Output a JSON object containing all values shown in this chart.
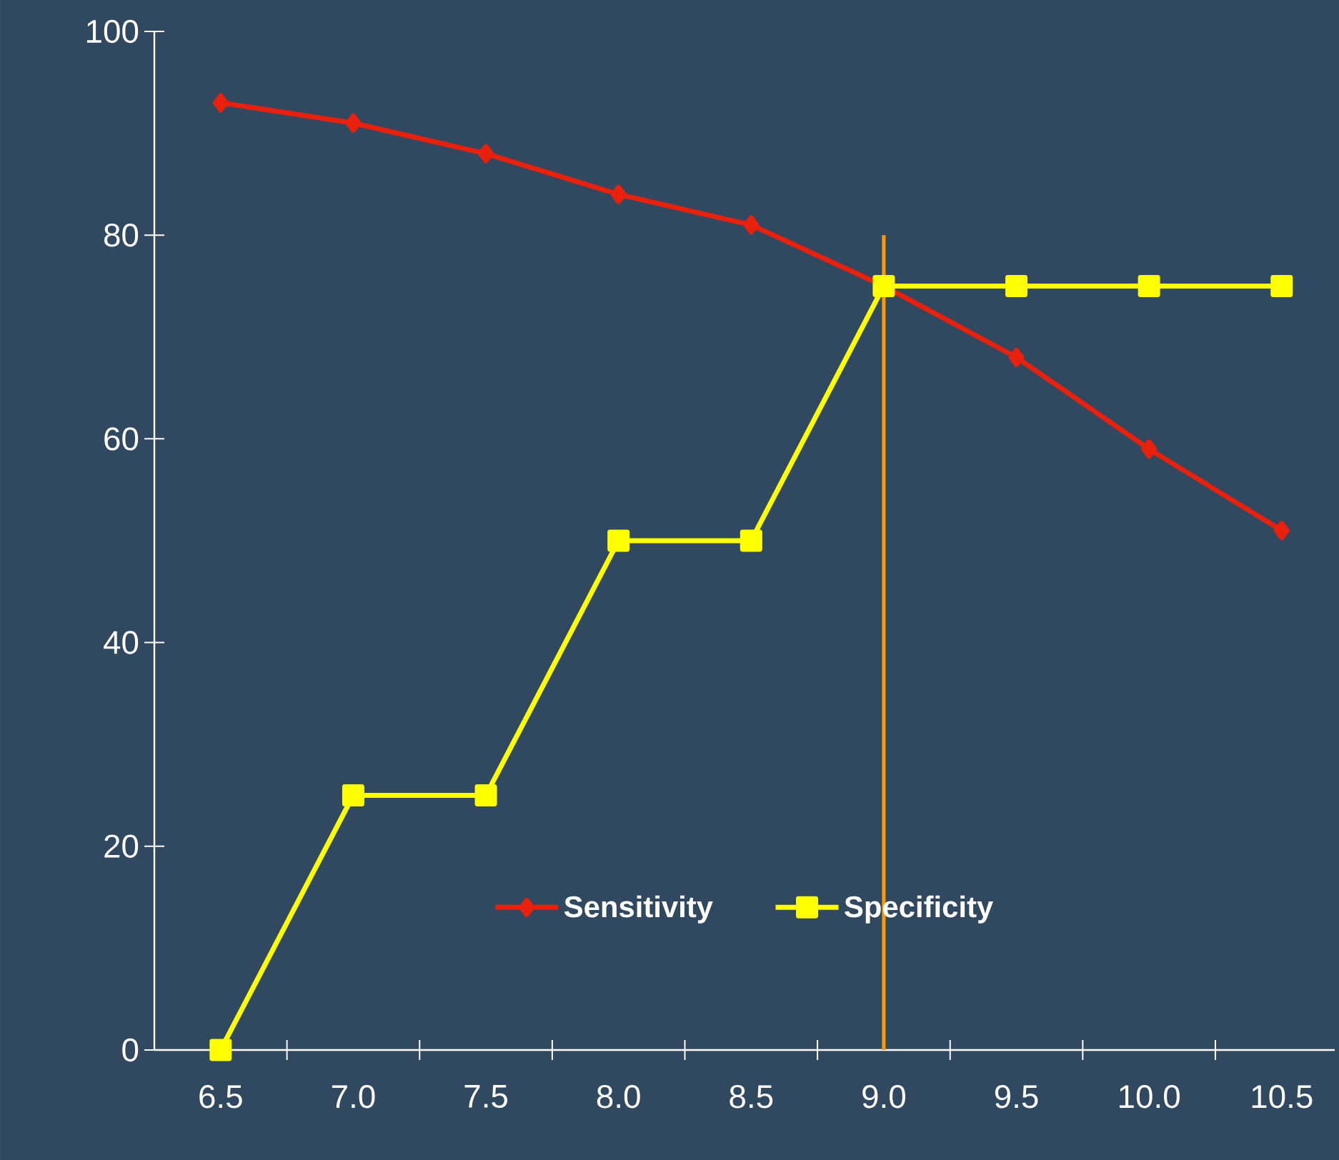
{
  "chart_data": {
    "type": "line",
    "categories": [
      "6.5",
      "7.0",
      "7.5",
      "8.0",
      "8.5",
      "9.0",
      "9.5",
      "10.0",
      "10.5"
    ],
    "series": [
      {
        "name": "Sensitivity",
        "color": "#e8200c",
        "marker": "diamond",
        "values": [
          93,
          91,
          88,
          84,
          81,
          75,
          68,
          59,
          51
        ]
      },
      {
        "name": "Specificity",
        "color": "#ffff00",
        "marker": "square",
        "values": [
          0,
          25,
          25,
          50,
          50,
          75,
          75,
          75,
          75
        ]
      }
    ],
    "ylim": [
      0,
      100
    ],
    "yticks": [
      0,
      20,
      40,
      60,
      80,
      100
    ],
    "ref_lines": [
      {
        "axis": "x",
        "value": "9.0",
        "color": "#ff9900"
      }
    ],
    "legend": "bottom",
    "grid": false,
    "line_style": "solid"
  }
}
